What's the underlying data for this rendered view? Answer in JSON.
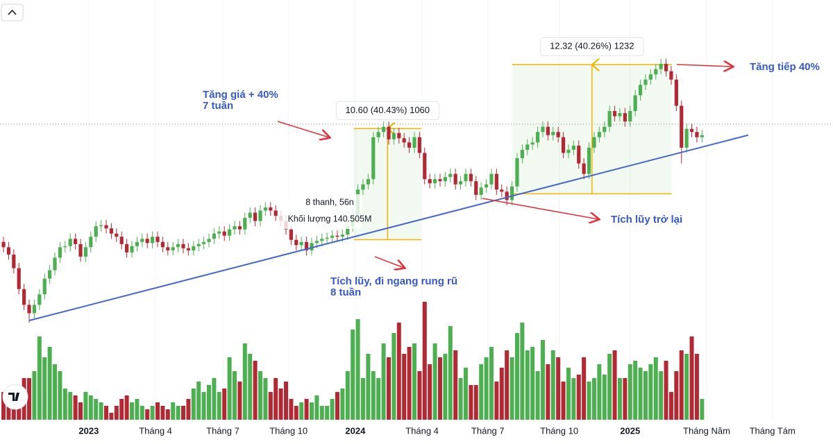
{
  "chart_data": {
    "type": "candlestick",
    "up_color": "#4caf50",
    "down_color": "#b22833",
    "xlim": [
      -0.68,
      161.5
    ],
    "ylim": [
      8.7,
      49.1
    ],
    "volume_lim": [
      0,
      200
    ],
    "xticks": [
      {
        "value": 16.6,
        "label": "2023"
      },
      {
        "value": 29.6,
        "label": "Tháng 4"
      },
      {
        "value": 42.7,
        "label": "Tháng 7"
      },
      {
        "value": 55.5,
        "label": "Tháng 10"
      },
      {
        "value": 68.5,
        "label": "2024"
      },
      {
        "value": 81.5,
        "label": "Tháng 4"
      },
      {
        "value": 94.3,
        "label": "Tháng 7"
      },
      {
        "value": 108.2,
        "label": "Tháng 10"
      },
      {
        "value": 122,
        "label": "2025"
      },
      {
        "value": 136.9,
        "label": "Tháng Năm"
      },
      {
        "value": 149.7,
        "label": "Tháng Tám"
      }
    ],
    "open": [
      26.0,
      25.5,
      24.8,
      23.5,
      21.5,
      20.0,
      19.2,
      20.0,
      21.0,
      22.5,
      23.3,
      24.5,
      25.5,
      25.6,
      26.3,
      25.8,
      24.6,
      25.5,
      26.5,
      27.5,
      27.6,
      27.3,
      26.8,
      26.5,
      25.8,
      25.0,
      25.6,
      26.0,
      26.3,
      25.9,
      26.5,
      26.0,
      25.5,
      25.2,
      25.5,
      25.8,
      25.4,
      25.2,
      25.6,
      25.8,
      26.0,
      26.3,
      26.8,
      27.0,
      26.6,
      27.2,
      27.5,
      27.2,
      28.3,
      28.8,
      28.0,
      29.0,
      29.3,
      29.0,
      28.5,
      28.0,
      27.2,
      26.2,
      25.7,
      26.0,
      25.2,
      25.9,
      26.1,
      26.3,
      26.4,
      26.6,
      26.5,
      26.7,
      27.5,
      28.6,
      31.0,
      31.5,
      32.0,
      36.0,
      36.5,
      37.0,
      35.8,
      36.4,
      35.9,
      35.5,
      35.0,
      36.0,
      34.5,
      32.0,
      31.6,
      32.0,
      31.8,
      32.2,
      32.5,
      31.5,
      31.8,
      32.5,
      31.8,
      30.5,
      31.2,
      31.5,
      32.5,
      31.0,
      30.8,
      30.0,
      31.3,
      34.0,
      34.8,
      35.3,
      35.5,
      36.5,
      37.0,
      36.2,
      36.5,
      36.0,
      34.5,
      34.8,
      35.2,
      33.5,
      32.5,
      35.0,
      36.0,
      36.5,
      37.0,
      38.5,
      38.0,
      38.3,
      37.5,
      38.5,
      40.0,
      41.0,
      41.5,
      42.0,
      42.5,
      43.0,
      42.3,
      41.5,
      39.0,
      35.0,
      36.8,
      36.5,
      36.0
    ],
    "high": [
      26.5,
      26.0,
      25.3,
      24.0,
      22.0,
      20.5,
      20.5,
      21.5,
      23.0,
      23.8,
      25.0,
      26.0,
      26.1,
      26.8,
      26.8,
      26.3,
      26.0,
      27.0,
      28.0,
      28.1,
      28.1,
      27.8,
      27.3,
      27.0,
      26.3,
      26.1,
      26.5,
      26.8,
      26.8,
      27.0,
      27.0,
      26.5,
      26.0,
      26.0,
      26.3,
      26.3,
      25.9,
      26.1,
      26.3,
      26.5,
      26.8,
      27.3,
      27.5,
      27.5,
      27.7,
      28.0,
      28.0,
      28.8,
      29.3,
      29.3,
      29.5,
      29.8,
      29.8,
      29.5,
      29.0,
      28.5,
      27.7,
      26.7,
      26.5,
      26.5,
      26.4,
      26.6,
      26.8,
      26.9,
      27.1,
      27.1,
      27.2,
      28.0,
      29.1,
      31.5,
      32.0,
      32.5,
      36.5,
      37.0,
      37.5,
      37.5,
      36.9,
      36.9,
      36.4,
      36.0,
      36.5,
      36.5,
      35.0,
      32.5,
      32.5,
      32.5,
      32.7,
      33.0,
      33.0,
      32.3,
      33.0,
      33.0,
      32.3,
      31.7,
      32.0,
      33.0,
      33.0,
      31.5,
      31.3,
      31.8,
      34.5,
      35.3,
      35.8,
      36.0,
      37.0,
      37.5,
      37.5,
      37.0,
      37.0,
      36.5,
      35.3,
      35.7,
      35.7,
      34.0,
      35.5,
      36.5,
      37.0,
      37.5,
      39.0,
      39.0,
      38.8,
      38.8,
      39.0,
      40.5,
      41.5,
      42.0,
      42.5,
      43.0,
      43.5,
      43.5,
      42.8,
      42.0,
      39.5,
      37.3,
      37.3,
      37.0,
      36.7
    ],
    "low": [
      25.0,
      24.3,
      23.0,
      21.0,
      19.5,
      18.3,
      18.7,
      19.5,
      20.5,
      22.0,
      22.8,
      24.0,
      25.0,
      25.1,
      25.3,
      24.1,
      24.1,
      25.0,
      26.0,
      27.0,
      26.8,
      26.3,
      26.0,
      25.3,
      24.5,
      24.5,
      25.1,
      25.5,
      25.4,
      25.4,
      25.5,
      25.0,
      24.7,
      24.7,
      25.0,
      24.9,
      24.7,
      24.7,
      25.1,
      25.3,
      25.5,
      25.8,
      26.3,
      26.1,
      26.1,
      26.7,
      26.7,
      26.7,
      27.8,
      27.5,
      27.5,
      28.5,
      28.5,
      28.0,
      27.5,
      26.7,
      25.7,
      25.2,
      25.2,
      24.7,
      24.7,
      25.4,
      25.6,
      25.8,
      25.9,
      26.0,
      26.0,
      26.2,
      27.0,
      28.1,
      30.5,
      31.0,
      31.5,
      35.5,
      36.0,
      35.3,
      35.3,
      35.4,
      35.0,
      34.5,
      34.5,
      34.0,
      31.5,
      31.1,
      31.1,
      31.3,
      31.3,
      31.7,
      31.0,
      31.0,
      31.3,
      31.3,
      30.0,
      30.0,
      30.7,
      31.0,
      30.5,
      30.3,
      29.5,
      29.5,
      30.8,
      33.5,
      34.3,
      34.8,
      35.0,
      36.0,
      35.7,
      35.7,
      35.5,
      34.0,
      34.0,
      34.3,
      33.0,
      32.0,
      32.0,
      34.5,
      35.5,
      36.0,
      36.5,
      37.5,
      37.5,
      37.0,
      37.0,
      38.0,
      39.5,
      40.5,
      41.0,
      41.5,
      42.0,
      41.8,
      41.0,
      38.5,
      33.5,
      34.5,
      36.0,
      35.5,
      35.5
    ],
    "close": [
      25.5,
      24.8,
      23.5,
      21.5,
      20.0,
      19.2,
      20.0,
      21.0,
      22.5,
      23.3,
      24.5,
      25.5,
      25.6,
      26.3,
      25.8,
      24.6,
      25.5,
      26.5,
      27.5,
      27.6,
      27.3,
      26.8,
      26.5,
      25.8,
      25.0,
      25.6,
      26.0,
      26.3,
      25.9,
      26.5,
      26.0,
      25.5,
      25.2,
      25.5,
      25.8,
      25.4,
      25.2,
      25.6,
      25.8,
      26.0,
      26.3,
      26.8,
      27.0,
      26.6,
      27.2,
      27.5,
      27.2,
      28.3,
      28.8,
      28.0,
      29.0,
      29.3,
      29.0,
      28.5,
      28.0,
      27.2,
      26.2,
      25.7,
      26.0,
      25.2,
      25.9,
      26.1,
      26.3,
      26.4,
      26.6,
      26.5,
      26.7,
      27.5,
      28.6,
      31.0,
      31.5,
      32.0,
      36.0,
      36.5,
      37.0,
      35.8,
      36.4,
      35.9,
      35.5,
      35.0,
      36.0,
      34.5,
      32.0,
      31.6,
      32.0,
      31.8,
      32.2,
      32.5,
      31.5,
      31.8,
      32.5,
      31.8,
      30.5,
      31.2,
      31.5,
      32.5,
      31.0,
      30.8,
      30.0,
      31.3,
      34.0,
      34.8,
      35.3,
      35.5,
      36.5,
      37.0,
      36.2,
      36.5,
      36.0,
      34.5,
      34.8,
      35.2,
      33.5,
      32.5,
      35.0,
      36.0,
      36.5,
      37.0,
      38.5,
      38.0,
      38.3,
      37.5,
      38.5,
      40.0,
      41.0,
      41.5,
      42.0,
      42.5,
      43.0,
      42.3,
      41.5,
      39.0,
      35.0,
      36.8,
      36.5,
      36.0,
      36.2
    ],
    "volume": [
      32,
      36,
      28,
      24,
      48,
      48,
      56,
      96,
      72,
      84,
      64,
      56,
      36,
      32,
      28,
      20,
      32,
      28,
      24,
      20,
      16,
      8,
      16,
      24,
      28,
      20,
      24,
      16,
      12,
      16,
      20,
      16,
      12,
      20,
      16,
      16,
      24,
      36,
      44,
      32,
      40,
      48,
      32,
      36,
      72,
      56,
      44,
      88,
      76,
      68,
      56,
      48,
      32,
      48,
      36,
      44,
      24,
      16,
      20,
      24,
      20,
      28,
      16,
      16,
      24,
      32,
      36,
      56,
      104,
      116,
      48,
      76,
      56,
      48,
      88,
      72,
      100,
      112,
      76,
      84,
      88,
      56,
      136,
      64,
      88,
      72,
      76,
      108,
      80,
      48,
      60,
      40,
      40,
      64,
      72,
      84,
      44,
      60,
      80,
      72,
      100,
      112,
      80,
      84,
      56,
      92,
      64,
      80,
      72,
      44,
      60,
      48,
      52,
      72,
      44,
      48,
      64,
      52,
      76,
      80,
      48,
      48,
      64,
      68,
      60,
      56,
      64,
      72,
      56,
      68,
      32,
      56,
      80,
      76,
      96,
      76,
      24
    ],
    "measures": [
      {
        "label": "10.60 (40.43%) 1060",
        "x": [
          68.2,
          81.35
        ],
        "y": [
          26.22,
          36.82
        ]
      },
      {
        "label": "12.32 (40.26%) 1232",
        "x": [
          99.05,
          130.1
        ],
        "y": [
          30.6,
          42.92
        ]
      }
    ],
    "trendline": {
      "x": [
        5,
        145
      ],
      "y": [
        18.5,
        36.2
      ],
      "color": "#4466cc"
    },
    "annotations": [
      "Tăng giá + 40%",
      "7 tuần",
      "Tích lũy, đi ngang rung rũ",
      "8 tuần",
      "Tích lũy trở lại",
      "Tăng tiếp 40%",
      "8 thanh, 56n",
      "Khối lượng 140.505M"
    ]
  }
}
